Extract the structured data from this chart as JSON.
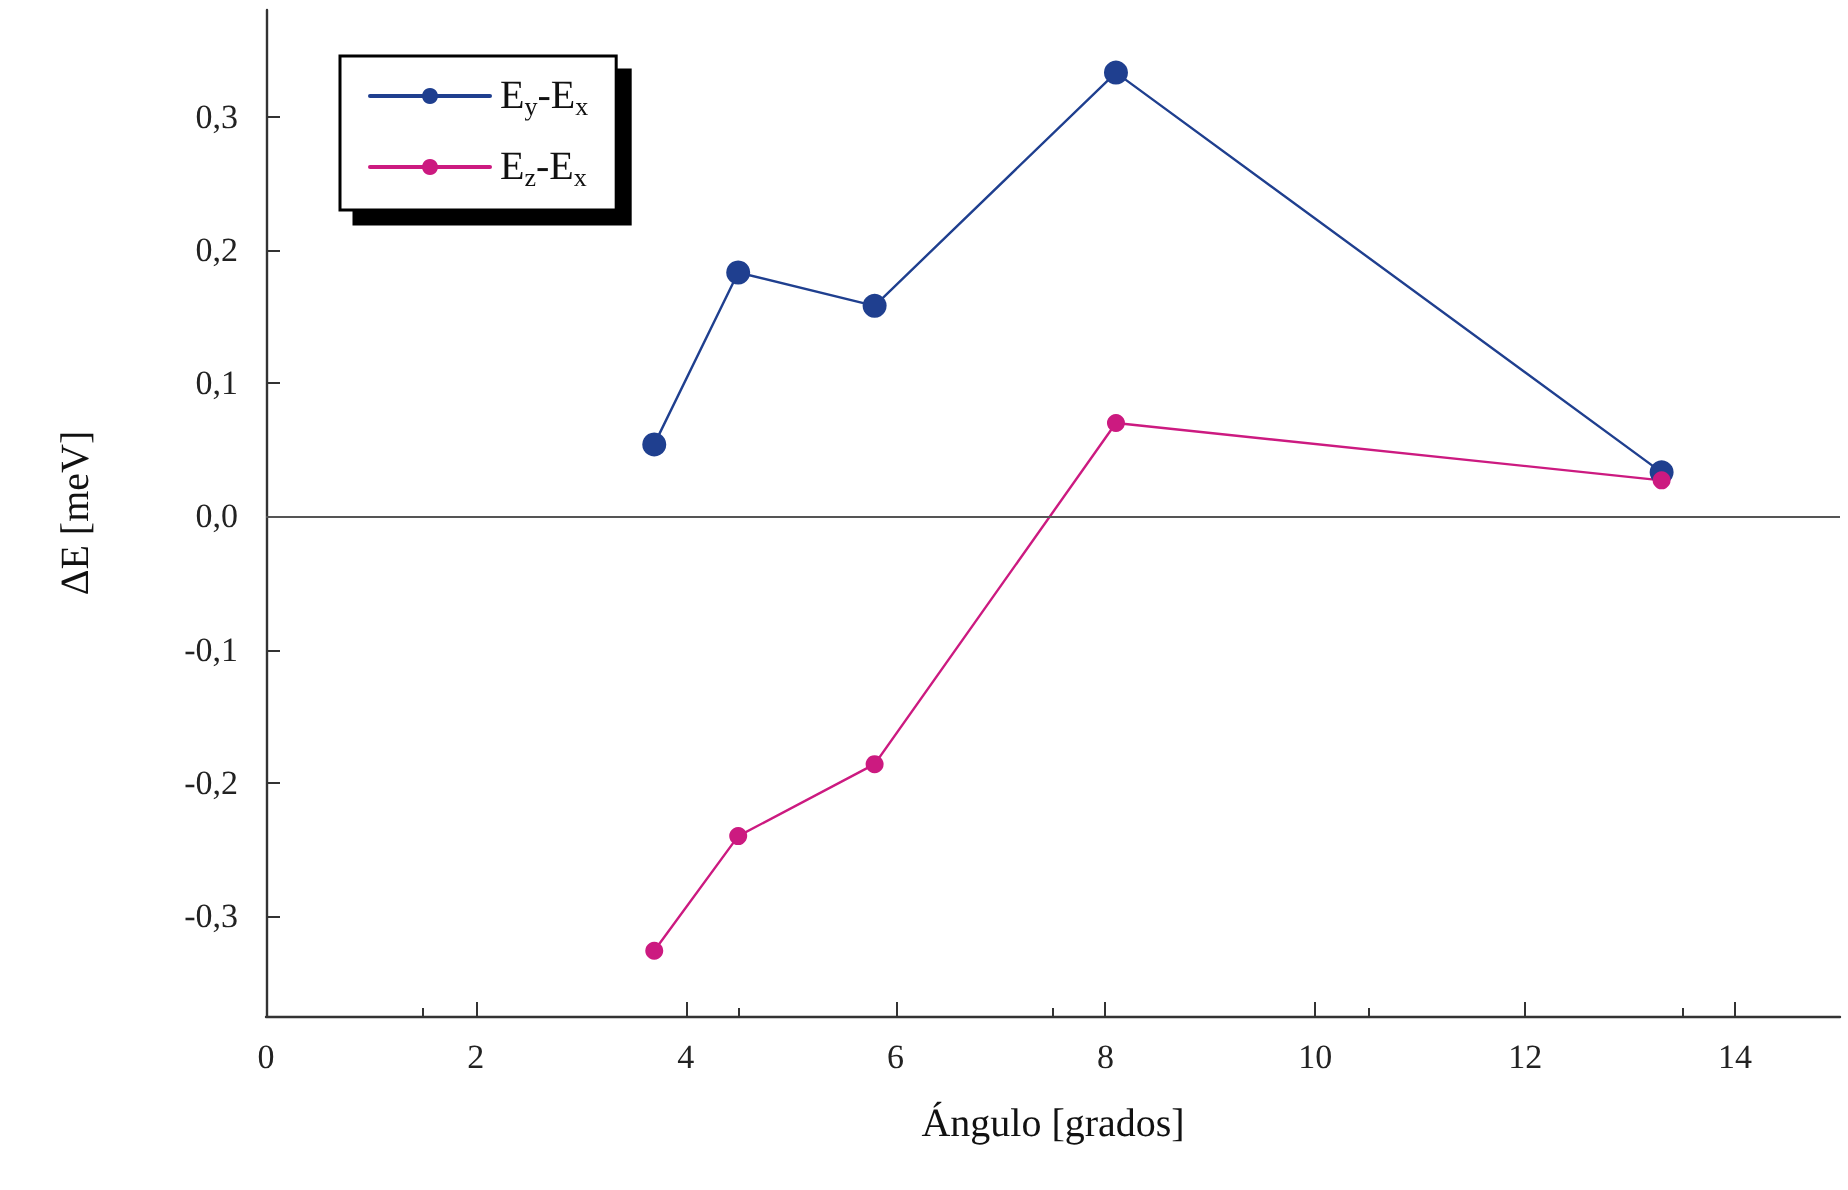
{
  "chart_data": {
    "type": "line",
    "xlabel": "Ángulo [grados]",
    "ylabel": "ΔE [meV]",
    "series": [
      {
        "name": "E$_{y}$-E$_{x}$",
        "color": "#1f3f8f",
        "x": [
          3.7,
          4.5,
          5.8,
          8.1,
          13.3
        ],
        "values": [
          0.054,
          0.183,
          0.158,
          0.333,
          0.033
        ]
      },
      {
        "name": "E$_{z}$-E$_{x}$",
        "color": "#cc1a80",
        "x": [
          3.7,
          4.5,
          5.8,
          8.1,
          13.3
        ],
        "values": [
          -0.326,
          -0.24,
          -0.186,
          0.07,
          0.027
        ]
      }
    ],
    "xlim": [
      0,
      15
    ],
    "xticks": [
      0,
      2,
      4,
      6,
      8,
      10,
      12,
      14
    ],
    "ylim": [
      -0.375,
      0.38
    ],
    "yticks": [
      {
        "value": -0.3,
        "label": "-0,3"
      },
      {
        "value": -0.2,
        "label": "-0,2"
      },
      {
        "value": -0.1,
        "label": "-0,1"
      },
      {
        "value": 0,
        "label": "0,0"
      },
      {
        "value": 0.1,
        "label": "0,1"
      },
      {
        "value": 0.2,
        "label": "0,2"
      },
      {
        "value": 0.3,
        "label": "0,3"
      }
    ],
    "ref_lines": [
      {
        "axis": "y",
        "value": 0,
        "label": null,
        "color": "#555555"
      }
    ],
    "grid": false,
    "legend": "top left",
    "marker": "circle",
    "line_style": "solid"
  }
}
